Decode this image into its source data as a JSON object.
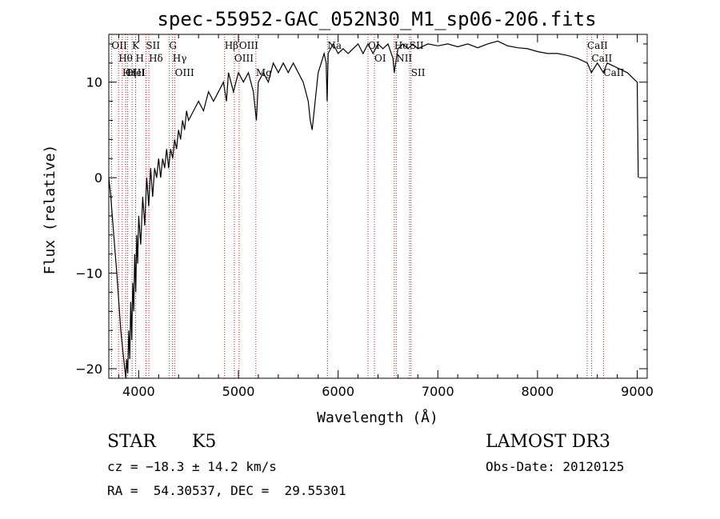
{
  "chart_data": {
    "type": "line",
    "title": "spec-55952-GAC_052N30_M1_sp06-206.fits",
    "xlabel": "Wavelength (Å)",
    "ylabel": "Flux (relative)",
    "xlim": [
      3700,
      9100
    ],
    "ylim": [
      -21,
      15
    ],
    "x_ticks": [
      4000,
      5000,
      6000,
      7000,
      8000,
      9000
    ],
    "y_ticks": [
      -20,
      -10,
      0,
      10
    ],
    "series": [
      {
        "points": [
          [
            3700,
            0
          ],
          [
            3720,
            -2
          ],
          [
            3750,
            -6
          ],
          [
            3780,
            -10
          ],
          [
            3800,
            -13
          ],
          [
            3820,
            -16
          ],
          [
            3840,
            -18
          ],
          [
            3860,
            -20
          ],
          [
            3870,
            -21
          ],
          [
            3880,
            -19
          ],
          [
            3890,
            -20.5
          ],
          [
            3900,
            -16
          ],
          [
            3910,
            -19
          ],
          [
            3920,
            -13
          ],
          [
            3930,
            -17
          ],
          [
            3940,
            -11
          ],
          [
            3950,
            -14
          ],
          [
            3960,
            -8
          ],
          [
            3970,
            -12
          ],
          [
            3980,
            -6
          ],
          [
            3990,
            -9
          ],
          [
            4000,
            -4
          ],
          [
            4020,
            -7
          ],
          [
            4040,
            -2
          ],
          [
            4060,
            -5
          ],
          [
            4080,
            0
          ],
          [
            4100,
            -3
          ],
          [
            4120,
            1
          ],
          [
            4140,
            -2
          ],
          [
            4160,
            1
          ],
          [
            4180,
            0
          ],
          [
            4200,
            2
          ],
          [
            4220,
            0
          ],
          [
            4240,
            2
          ],
          [
            4260,
            1
          ],
          [
            4280,
            3
          ],
          [
            4300,
            1
          ],
          [
            4320,
            3
          ],
          [
            4340,
            2
          ],
          [
            4360,
            4
          ],
          [
            4380,
            3
          ],
          [
            4400,
            5
          ],
          [
            4420,
            4
          ],
          [
            4440,
            6
          ],
          [
            4460,
            5
          ],
          [
            4480,
            7
          ],
          [
            4500,
            6
          ],
          [
            4550,
            7
          ],
          [
            4600,
            8
          ],
          [
            4650,
            7
          ],
          [
            4700,
            9
          ],
          [
            4750,
            8
          ],
          [
            4800,
            9
          ],
          [
            4850,
            10
          ],
          [
            4880,
            8
          ],
          [
            4900,
            11
          ],
          [
            4950,
            9
          ],
          [
            5000,
            11
          ],
          [
            5050,
            10
          ],
          [
            5100,
            11
          ],
          [
            5150,
            9
          ],
          [
            5180,
            6
          ],
          [
            5200,
            10
          ],
          [
            5250,
            11
          ],
          [
            5300,
            10
          ],
          [
            5350,
            12
          ],
          [
            5400,
            11
          ],
          [
            5450,
            12
          ],
          [
            5500,
            11
          ],
          [
            5550,
            12
          ],
          [
            5600,
            11
          ],
          [
            5650,
            10
          ],
          [
            5700,
            8
          ],
          [
            5720,
            6
          ],
          [
            5740,
            5
          ],
          [
            5760,
            7
          ],
          [
            5780,
            9
          ],
          [
            5800,
            11
          ],
          [
            5830,
            12
          ],
          [
            5860,
            13
          ],
          [
            5880,
            12
          ],
          [
            5890,
            8
          ],
          [
            5900,
            13
          ],
          [
            5950,
            14
          ],
          [
            6000,
            13
          ],
          [
            6050,
            13.5
          ],
          [
            6100,
            13
          ],
          [
            6150,
            13.5
          ],
          [
            6200,
            14
          ],
          [
            6250,
            13
          ],
          [
            6300,
            14
          ],
          [
            6350,
            13
          ],
          [
            6400,
            14
          ],
          [
            6450,
            13.5
          ],
          [
            6500,
            14
          ],
          [
            6550,
            12.5
          ],
          [
            6563,
            11
          ],
          [
            6600,
            13.5
          ],
          [
            6650,
            14
          ],
          [
            6700,
            13.5
          ],
          [
            6750,
            14
          ],
          [
            6800,
            13.5
          ],
          [
            6900,
            14
          ],
          [
            7000,
            13.8
          ],
          [
            7100,
            14
          ],
          [
            7200,
            13.7
          ],
          [
            7300,
            14
          ],
          [
            7400,
            13.6
          ],
          [
            7500,
            14
          ],
          [
            7600,
            14.3
          ],
          [
            7700,
            13.8
          ],
          [
            7800,
            13.6
          ],
          [
            7900,
            13.5
          ],
          [
            8000,
            13.2
          ],
          [
            8100,
            13
          ],
          [
            8200,
            13
          ],
          [
            8300,
            12.8
          ],
          [
            8400,
            12.5
          ],
          [
            8500,
            12
          ],
          [
            8540,
            11
          ],
          [
            8600,
            12
          ],
          [
            8660,
            11
          ],
          [
            8700,
            12
          ],
          [
            8800,
            11.5
          ],
          [
            8900,
            11
          ],
          [
            8950,
            10.5
          ],
          [
            9000,
            10
          ],
          [
            9010,
            0
          ]
        ]
      }
    ],
    "spectral_lines": [
      {
        "label": "Hθ",
        "x": 3798
      },
      {
        "label": "K",
        "x": 3934
      },
      {
        "label": "Hδ",
        "x": 4102
      },
      {
        "label": "OII",
        "x": 3727
      },
      {
        "label": "HeI",
        "x": 3889
      },
      {
        "label": "SII",
        "x": 4072
      },
      {
        "label": "OIII",
        "x": 3869
      },
      {
        "label": "Hη",
        "x": 3835
      },
      {
        "label": "H",
        "x": 3969
      },
      {
        "label": "OIII",
        "x": 4363
      },
      {
        "label": "Hγ",
        "x": 4340
      },
      {
        "label": "G",
        "x": 4305
      },
      {
        "label": "OIII",
        "x": 4959
      },
      {
        "label": "OIII",
        "x": 5007
      },
      {
        "label": "Hβ",
        "x": 4861
      },
      {
        "label": "Mg",
        "x": 5175
      },
      {
        "label": "Na",
        "x": 5893
      },
      {
        "label": "OI",
        "x": 6300
      },
      {
        "label": "OI",
        "x": 6364
      },
      {
        "label": "Hα",
        "x": 6563
      },
      {
        "label": "NII",
        "x": 6583
      },
      {
        "label": "SII",
        "x": 6716
      },
      {
        "label": "SII",
        "x": 6731
      },
      {
        "label": "CaII",
        "x": 8498
      },
      {
        "label": "CaII",
        "x": 8542
      },
      {
        "label": "CaII",
        "x": 8662
      }
    ]
  },
  "info": {
    "object_class": "STAR",
    "subclass": "K5",
    "survey": "LAMOST DR3",
    "cz": "cz = −18.3 ± 14.2 km/s",
    "obs_date": "Obs-Date: 20120125",
    "coords": "RA =  54.30537, DEC =  29.55301"
  }
}
